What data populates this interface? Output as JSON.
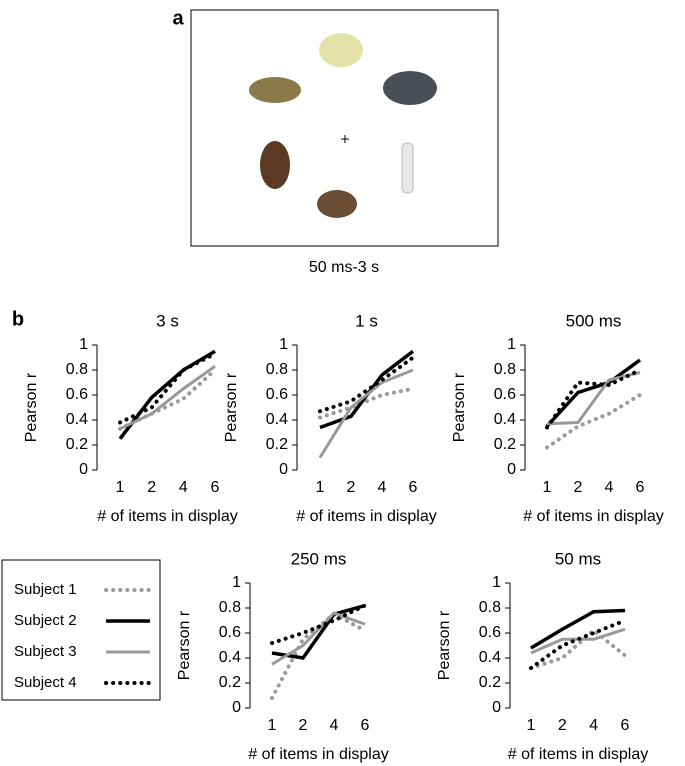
{
  "panel_labels": [
    "a",
    "b"
  ],
  "stimulus_caption": "50 ms-3 s",
  "chart_data": [
    {
      "type": "line",
      "title": "3 s",
      "x_label": "# of items in display",
      "y_label": "Pearson r",
      "categories": [
        "1",
        "2",
        "4",
        "6"
      ],
      "ylim": [
        0,
        1
      ],
      "yticks": [
        0,
        0.2,
        0.4,
        0.6,
        0.8,
        1
      ],
      "series": [
        {
          "name": "Subject 1",
          "color": "#999999",
          "line_style": "dotted",
          "values": [
            0.33,
            0.45,
            0.57,
            0.8
          ]
        },
        {
          "name": "Subject 2",
          "color": "#000000",
          "line_style": "solid",
          "values": [
            0.25,
            0.58,
            0.8,
            0.95
          ]
        },
        {
          "name": "Subject 3",
          "color": "#999999",
          "line_style": "solid",
          "values": [
            0.33,
            0.45,
            0.65,
            0.83
          ]
        },
        {
          "name": "Subject 4",
          "color": "#000000",
          "line_style": "dotted",
          "values": [
            0.38,
            0.5,
            0.8,
            0.93
          ]
        }
      ]
    },
    {
      "type": "line",
      "title": "1 s",
      "x_label": "# of items in display",
      "y_label": "Pearson r",
      "categories": [
        "1",
        "2",
        "4",
        "6"
      ],
      "ylim": [
        0,
        1
      ],
      "yticks": [
        0,
        0.2,
        0.4,
        0.6,
        0.8,
        1
      ],
      "series": [
        {
          "name": "Subject 1",
          "color": "#999999",
          "line_style": "dotted",
          "values": [
            0.42,
            0.5,
            0.6,
            0.65
          ]
        },
        {
          "name": "Subject 2",
          "color": "#000000",
          "line_style": "solid",
          "values": [
            0.34,
            0.43,
            0.76,
            0.95
          ]
        },
        {
          "name": "Subject 3",
          "color": "#999999",
          "line_style": "solid",
          "values": [
            0.1,
            0.5,
            0.7,
            0.8
          ]
        },
        {
          "name": "Subject 4",
          "color": "#000000",
          "line_style": "dotted",
          "values": [
            0.47,
            0.55,
            0.72,
            0.9
          ]
        }
      ]
    },
    {
      "type": "line",
      "title": "500 ms",
      "x_label": "# of items in display",
      "y_label": "Pearson r",
      "categories": [
        "1",
        "2",
        "4",
        "6"
      ],
      "ylim": [
        0,
        1
      ],
      "yticks": [
        0,
        0.2,
        0.4,
        0.6,
        0.8,
        1
      ],
      "series": [
        {
          "name": "Subject 1",
          "color": "#999999",
          "line_style": "dotted",
          "values": [
            0.18,
            0.35,
            0.45,
            0.6
          ]
        },
        {
          "name": "Subject 2",
          "color": "#000000",
          "line_style": "solid",
          "values": [
            0.35,
            0.62,
            0.7,
            0.88
          ]
        },
        {
          "name": "Subject 3",
          "color": "#999999",
          "line_style": "solid",
          "values": [
            0.37,
            0.38,
            0.72,
            0.78
          ]
        },
        {
          "name": "Subject 4",
          "color": "#000000",
          "line_style": "dotted",
          "values": [
            0.34,
            0.7,
            0.68,
            0.8
          ]
        }
      ]
    },
    {
      "type": "line",
      "title": "250 ms",
      "x_label": "#  of items in display",
      "y_label": "Pearson r",
      "categories": [
        "1",
        "2",
        "4",
        "6"
      ],
      "ylim": [
        0,
        1
      ],
      "yticks": [
        0,
        0.2,
        0.4,
        0.6,
        0.8,
        1
      ],
      "series": [
        {
          "name": "Subject 1",
          "color": "#999999",
          "line_style": "dotted",
          "values": [
            0.08,
            0.55,
            0.75,
            0.62
          ]
        },
        {
          "name": "Subject 2",
          "color": "#000000",
          "line_style": "solid",
          "values": [
            0.44,
            0.4,
            0.75,
            0.82
          ]
        },
        {
          "name": "Subject 3",
          "color": "#999999",
          "line_style": "solid",
          "values": [
            0.35,
            0.5,
            0.76,
            0.67
          ]
        },
        {
          "name": "Subject 4",
          "color": "#000000",
          "line_style": "dotted",
          "values": [
            0.52,
            0.6,
            0.7,
            0.82
          ]
        }
      ]
    },
    {
      "type": "line",
      "title": "50 ms",
      "x_label": "# of items in display",
      "y_label": "Pearson r",
      "categories": [
        "1",
        "2",
        "4",
        "6"
      ],
      "ylim": [
        0,
        1
      ],
      "yticks": [
        0,
        0.2,
        0.4,
        0.6,
        0.8,
        1
      ],
      "series": [
        {
          "name": "Subject 1",
          "color": "#999999",
          "line_style": "dotted",
          "values": [
            0.32,
            0.4,
            0.62,
            0.42
          ]
        },
        {
          "name": "Subject 2",
          "color": "#000000",
          "line_style": "solid",
          "values": [
            0.48,
            0.63,
            0.77,
            0.78
          ]
        },
        {
          "name": "Subject 3",
          "color": "#999999",
          "line_style": "solid",
          "values": [
            0.44,
            0.55,
            0.55,
            0.63
          ]
        },
        {
          "name": "Subject 4",
          "color": "#000000",
          "line_style": "dotted",
          "values": [
            0.32,
            0.5,
            0.6,
            0.7
          ]
        }
      ]
    }
  ]
}
